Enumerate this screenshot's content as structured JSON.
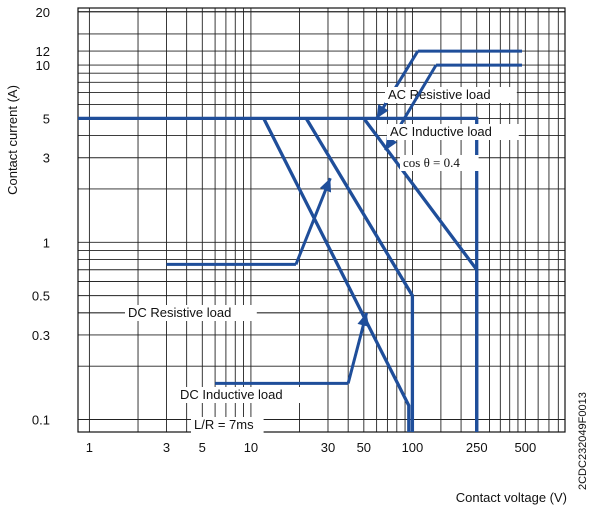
{
  "chart_data": {
    "type": "line",
    "title": "",
    "xlabel": "Contact voltage (V)",
    "ylabel": "Contact current (A)",
    "x_scale": "log",
    "y_scale": "log",
    "xlim": [
      0.85,
      880
    ],
    "ylim": [
      0.085,
      21
    ],
    "grid": true,
    "x_ticks": [
      1,
      3,
      5,
      10,
      30,
      50,
      100,
      250,
      500
    ],
    "x_tick_labels": [
      "1",
      "3",
      "5",
      "10",
      "30",
      "50",
      "100",
      "250",
      "500"
    ],
    "y_ticks": [
      0.1,
      0.3,
      0.5,
      1,
      3,
      5,
      10,
      12,
      20
    ],
    "y_tick_labels": [
      "0.1",
      "0.3",
      "0.5",
      "1",
      "3",
      "5",
      "10",
      "12",
      "20"
    ],
    "series": [
      {
        "name": "AC Resistive load",
        "x": [
          0.85,
          240,
          250,
          250
        ],
        "y": [
          5,
          5,
          5,
          0.085
        ]
      },
      {
        "name": "AC Inductive load",
        "x": [
          50,
          250,
          250
        ],
        "y": [
          5,
          0.7,
          0.085
        ]
      },
      {
        "name": "DC Resistive load",
        "x": [
          22,
          100,
          100
        ],
        "y": [
          5,
          0.5,
          0.085
        ]
      },
      {
        "name": "DC Inductive load",
        "x": [
          12,
          95,
          95
        ],
        "y": [
          5,
          0.12,
          0.085
        ]
      }
    ],
    "annotations": [
      {
        "text": "AC Resistive load",
        "line": [
          [
            108,
            12
          ],
          [
            600,
            12
          ]
        ],
        "arrow_to": [
          60,
          5
        ]
      },
      {
        "text": "AC Inductive load",
        "line": [
          [
            140,
            10
          ],
          [
            600,
            10
          ]
        ],
        "arrow_to": [
          68,
          3.3
        ]
      },
      {
        "text": "cos θ = 0.4"
      },
      {
        "text": "DC Resistive load",
        "line": [
          [
            3,
            0.75
          ],
          [
            19,
            0.75
          ]
        ],
        "arrow_to": [
          31,
          2.3
        ]
      },
      {
        "text": "DC Inductive load",
        "line": [
          [
            6,
            0.16
          ],
          [
            40,
            0.16
          ]
        ],
        "arrow_to": [
          52,
          0.4
        ]
      },
      {
        "text": "L/R = 7ms"
      }
    ],
    "figure_code": "2CDC232049F0013"
  },
  "colors": {
    "curve": "#1f4e9a",
    "grid": "#222222"
  }
}
